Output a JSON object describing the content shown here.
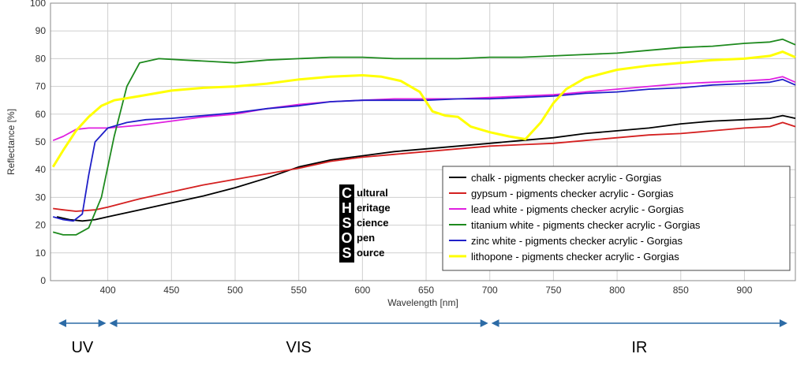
{
  "chart_data": {
    "type": "line",
    "title": "",
    "xlabel": "Wavelength [nm]",
    "ylabel": "Reflectance [%]",
    "xlim": [
      355,
      940
    ],
    "ylim": [
      0,
      100
    ],
    "xticks": [
      400,
      450,
      500,
      550,
      600,
      650,
      700,
      750,
      800,
      850,
      900
    ],
    "yticks": [
      0,
      10,
      20,
      30,
      40,
      50,
      60,
      70,
      80,
      90,
      100
    ],
    "grid": true,
    "legend_position": "bottom-right",
    "series": [
      {
        "name": "chalk - pigments checker acrylic - Gorgias",
        "color": "#000000",
        "points": [
          [
            360,
            23
          ],
          [
            370,
            22
          ],
          [
            380,
            21.5
          ],
          [
            390,
            22
          ],
          [
            400,
            23
          ],
          [
            425,
            25.5
          ],
          [
            450,
            28
          ],
          [
            475,
            30.5
          ],
          [
            500,
            33.5
          ],
          [
            525,
            37
          ],
          [
            550,
            41
          ],
          [
            575,
            43.5
          ],
          [
            600,
            45
          ],
          [
            625,
            46.5
          ],
          [
            650,
            47.5
          ],
          [
            675,
            48.5
          ],
          [
            700,
            49.5
          ],
          [
            725,
            50.5
          ],
          [
            750,
            51.5
          ],
          [
            775,
            53
          ],
          [
            800,
            54
          ],
          [
            825,
            55
          ],
          [
            850,
            56.5
          ],
          [
            875,
            57.5
          ],
          [
            900,
            58
          ],
          [
            920,
            58.5
          ],
          [
            930,
            59.5
          ],
          [
            940,
            58.5
          ]
        ]
      },
      {
        "name": "gypsum - pigments checker acrylic - Gorgias",
        "color": "#d42020",
        "points": [
          [
            357,
            26
          ],
          [
            365,
            25.5
          ],
          [
            375,
            25
          ],
          [
            390,
            25.5
          ],
          [
            400,
            26.5
          ],
          [
            425,
            29.5
          ],
          [
            450,
            32
          ],
          [
            475,
            34.5
          ],
          [
            500,
            36.5
          ],
          [
            525,
            38.5
          ],
          [
            550,
            40.5
          ],
          [
            575,
            43
          ],
          [
            600,
            44.5
          ],
          [
            625,
            45.5
          ],
          [
            650,
            46.5
          ],
          [
            675,
            47.5
          ],
          [
            700,
            48.5
          ],
          [
            725,
            49
          ],
          [
            750,
            49.5
          ],
          [
            775,
            50.5
          ],
          [
            800,
            51.5
          ],
          [
            825,
            52.5
          ],
          [
            850,
            53
          ],
          [
            875,
            54
          ],
          [
            900,
            55
          ],
          [
            920,
            55.5
          ],
          [
            930,
            57
          ],
          [
            940,
            55.5
          ]
        ]
      },
      {
        "name": "lead white - pigments checker acrylic - Gorgias",
        "color": "#e020e0",
        "points": [
          [
            357,
            50.5
          ],
          [
            365,
            52
          ],
          [
            375,
            54.5
          ],
          [
            385,
            55
          ],
          [
            400,
            55
          ],
          [
            425,
            56
          ],
          [
            450,
            57.5
          ],
          [
            475,
            59
          ],
          [
            500,
            60
          ],
          [
            525,
            62
          ],
          [
            550,
            63.5
          ],
          [
            575,
            64.5
          ],
          [
            600,
            65
          ],
          [
            625,
            65.5
          ],
          [
            650,
            65.5
          ],
          [
            675,
            65.5
          ],
          [
            700,
            66
          ],
          [
            725,
            66.5
          ],
          [
            750,
            67
          ],
          [
            775,
            68
          ],
          [
            800,
            69
          ],
          [
            825,
            70
          ],
          [
            850,
            71
          ],
          [
            875,
            71.5
          ],
          [
            900,
            72
          ],
          [
            920,
            72.5
          ],
          [
            930,
            73.5
          ],
          [
            940,
            71.5
          ]
        ]
      },
      {
        "name": "titanium white - pigments checker acrylic - Gorgias",
        "color": "#1e8a1e",
        "points": [
          [
            357,
            17.5
          ],
          [
            365,
            16.5
          ],
          [
            375,
            16.5
          ],
          [
            385,
            19
          ],
          [
            395,
            30
          ],
          [
            405,
            52
          ],
          [
            415,
            70
          ],
          [
            425,
            78.5
          ],
          [
            440,
            80
          ],
          [
            460,
            79.5
          ],
          [
            480,
            79
          ],
          [
            500,
            78.5
          ],
          [
            525,
            79.5
          ],
          [
            550,
            80
          ],
          [
            575,
            80.5
          ],
          [
            600,
            80.5
          ],
          [
            625,
            80
          ],
          [
            650,
            80
          ],
          [
            675,
            80
          ],
          [
            700,
            80.5
          ],
          [
            725,
            80.5
          ],
          [
            750,
            81
          ],
          [
            775,
            81.5
          ],
          [
            800,
            82
          ],
          [
            825,
            83
          ],
          [
            850,
            84
          ],
          [
            875,
            84.5
          ],
          [
            900,
            85.5
          ],
          [
            920,
            86
          ],
          [
            930,
            87
          ],
          [
            940,
            85
          ]
        ]
      },
      {
        "name": "zinc white - pigments checker acrylic - Gorgias",
        "color": "#2020c8",
        "points": [
          [
            357,
            23
          ],
          [
            365,
            22
          ],
          [
            373,
            21.5
          ],
          [
            380,
            24
          ],
          [
            385,
            38
          ],
          [
            390,
            50
          ],
          [
            400,
            55
          ],
          [
            415,
            57
          ],
          [
            430,
            58
          ],
          [
            450,
            58.5
          ],
          [
            475,
            59.5
          ],
          [
            500,
            60.5
          ],
          [
            525,
            62
          ],
          [
            550,
            63
          ],
          [
            575,
            64.5
          ],
          [
            600,
            65
          ],
          [
            625,
            65
          ],
          [
            650,
            65
          ],
          [
            675,
            65.5
          ],
          [
            700,
            65.5
          ],
          [
            725,
            66
          ],
          [
            750,
            66.5
          ],
          [
            775,
            67.5
          ],
          [
            800,
            68
          ],
          [
            825,
            69
          ],
          [
            850,
            69.5
          ],
          [
            875,
            70.5
          ],
          [
            900,
            71
          ],
          [
            920,
            71.5
          ],
          [
            930,
            72.5
          ],
          [
            940,
            70.5
          ]
        ]
      },
      {
        "name": "lithopone - pigments checker acrylic - Gorgias",
        "color": "#ffff00",
        "points": [
          [
            357,
            41
          ],
          [
            365,
            47
          ],
          [
            375,
            54
          ],
          [
            385,
            59
          ],
          [
            395,
            63
          ],
          [
            405,
            65
          ],
          [
            425,
            66.5
          ],
          [
            450,
            68.5
          ],
          [
            475,
            69.5
          ],
          [
            500,
            70
          ],
          [
            525,
            71
          ],
          [
            550,
            72.5
          ],
          [
            575,
            73.5
          ],
          [
            600,
            74
          ],
          [
            615,
            73.5
          ],
          [
            630,
            72
          ],
          [
            645,
            68
          ],
          [
            655,
            61
          ],
          [
            665,
            59.5
          ],
          [
            675,
            59
          ],
          [
            685,
            55.5
          ],
          [
            700,
            53.5
          ],
          [
            715,
            52
          ],
          [
            728,
            51
          ],
          [
            740,
            57
          ],
          [
            750,
            64
          ],
          [
            760,
            69
          ],
          [
            775,
            73
          ],
          [
            800,
            76
          ],
          [
            825,
            77.5
          ],
          [
            850,
            78.5
          ],
          [
            875,
            79.5
          ],
          [
            900,
            80
          ],
          [
            920,
            81
          ],
          [
            930,
            82.5
          ],
          [
            940,
            80.5
          ]
        ]
      }
    ]
  },
  "logo": {
    "letters": [
      "C",
      "H",
      "S",
      "O",
      "S"
    ],
    "words": [
      "ultural",
      "eritage",
      "cience",
      "pen",
      "ource"
    ]
  },
  "bands": [
    {
      "label": "UV",
      "from_nm": 360,
      "to_nm": 400
    },
    {
      "label": "VIS",
      "from_nm": 400,
      "to_nm": 700
    },
    {
      "label": "IR",
      "from_nm": 700,
      "to_nm": 935
    }
  ],
  "colors": {
    "grid": "#cfcfcf",
    "axis": "#888888",
    "band_arrow": "#2c6ba6"
  }
}
